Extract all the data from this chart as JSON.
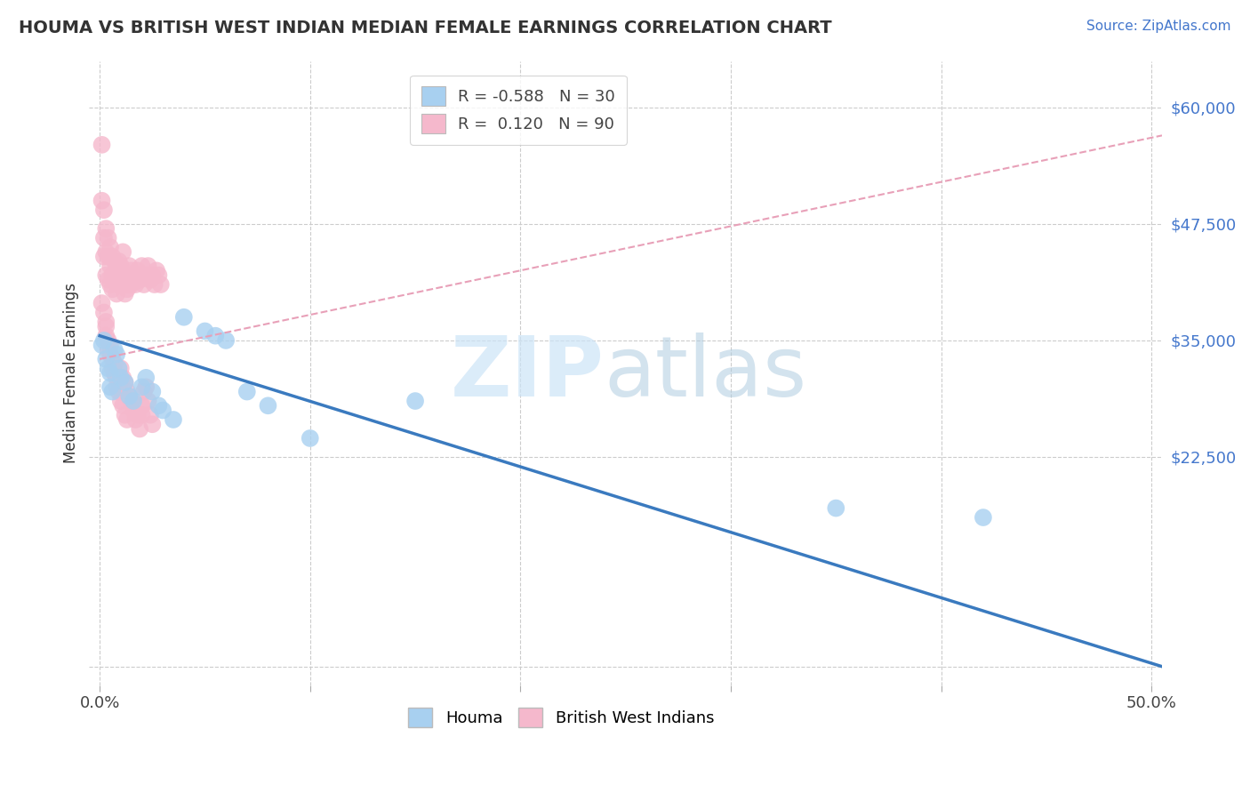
{
  "title": "HOUMA VS BRITISH WEST INDIAN MEDIAN FEMALE EARNINGS CORRELATION CHART",
  "source": "Source: ZipAtlas.com",
  "ylabel": "Median Female Earnings",
  "xlim": [
    -0.005,
    0.505
  ],
  "ylim": [
    -2000,
    65000
  ],
  "xticks": [
    0.0,
    0.1,
    0.2,
    0.3,
    0.4,
    0.5
  ],
  "xticklabels": [
    "0.0%",
    "",
    "",
    "",
    "",
    "50.0%"
  ],
  "ytick_positions": [
    0,
    22500,
    35000,
    47500,
    60000
  ],
  "ytick_labels": [
    "",
    "$22,500",
    "$35,000",
    "$47,500",
    "$60,000"
  ],
  "background_color": "#ffffff",
  "grid_color": "#cccccc",
  "legend_r_houma": "-0.588",
  "legend_n_houma": "30",
  "legend_r_bwi": "0.120",
  "legend_n_bwi": "90",
  "houma_color": "#a8d0f0",
  "bwi_color": "#f5b8cc",
  "houma_trend_color": "#3a7abf",
  "bwi_trend_color": "#e8a0b8",
  "houma_trend_x": [
    0.0,
    0.505
  ],
  "houma_trend_y": [
    35500,
    0
  ],
  "bwi_trend_x": [
    0.0,
    0.505
  ],
  "bwi_trend_y": [
    33000,
    57000
  ],
  "houma_scatter_x": [
    0.001,
    0.002,
    0.003,
    0.004,
    0.005,
    0.005,
    0.006,
    0.007,
    0.008,
    0.009,
    0.01,
    0.012,
    0.014,
    0.016,
    0.02,
    0.022,
    0.025,
    0.028,
    0.03,
    0.035,
    0.04,
    0.05,
    0.055,
    0.06,
    0.07,
    0.08,
    0.1,
    0.15,
    0.35,
    0.42
  ],
  "houma_scatter_y": [
    34500,
    35000,
    33000,
    32000,
    31500,
    30000,
    29500,
    34000,
    33500,
    32000,
    31000,
    30500,
    29000,
    28500,
    30000,
    31000,
    29500,
    28000,
    27500,
    26500,
    37500,
    36000,
    35500,
    35000,
    29500,
    28000,
    24500,
    28500,
    17000,
    16000
  ],
  "bwi_scatter_x": [
    0.001,
    0.001,
    0.002,
    0.002,
    0.002,
    0.003,
    0.003,
    0.003,
    0.004,
    0.004,
    0.004,
    0.005,
    0.005,
    0.005,
    0.006,
    0.006,
    0.006,
    0.007,
    0.007,
    0.008,
    0.008,
    0.008,
    0.009,
    0.009,
    0.01,
    0.01,
    0.011,
    0.011,
    0.012,
    0.012,
    0.013,
    0.013,
    0.014,
    0.014,
    0.015,
    0.015,
    0.016,
    0.017,
    0.018,
    0.019,
    0.02,
    0.021,
    0.022,
    0.023,
    0.024,
    0.025,
    0.026,
    0.027,
    0.028,
    0.029,
    0.001,
    0.002,
    0.003,
    0.003,
    0.004,
    0.005,
    0.005,
    0.006,
    0.007,
    0.007,
    0.008,
    0.009,
    0.01,
    0.011,
    0.012,
    0.013,
    0.014,
    0.015,
    0.016,
    0.017,
    0.018,
    0.019,
    0.02,
    0.02,
    0.021,
    0.022,
    0.023,
    0.024,
    0.025,
    0.003,
    0.004,
    0.005,
    0.006,
    0.007,
    0.008,
    0.009,
    0.01,
    0.011,
    0.012,
    0.013
  ],
  "bwi_scatter_y": [
    56000,
    50000,
    49000,
    46000,
    44000,
    47000,
    44500,
    42000,
    46000,
    44000,
    41500,
    45000,
    43000,
    41000,
    44000,
    42000,
    40500,
    43500,
    41500,
    43000,
    41500,
    40000,
    43500,
    41000,
    43000,
    41000,
    44500,
    42000,
    41000,
    40000,
    42000,
    40500,
    43000,
    41000,
    42500,
    41000,
    42000,
    41000,
    42500,
    41500,
    43000,
    41000,
    42000,
    43000,
    41500,
    42000,
    41000,
    42500,
    42000,
    41000,
    39000,
    38000,
    37000,
    36500,
    35000,
    34500,
    33500,
    33000,
    32500,
    31500,
    31000,
    30500,
    32000,
    31000,
    30500,
    29500,
    29000,
    28500,
    27500,
    26500,
    27000,
    25500,
    27000,
    28000,
    29500,
    30000,
    28500,
    27000,
    26000,
    35500,
    34000,
    33500,
    32000,
    31500,
    30000,
    29500,
    28500,
    28000,
    27000,
    26500
  ]
}
